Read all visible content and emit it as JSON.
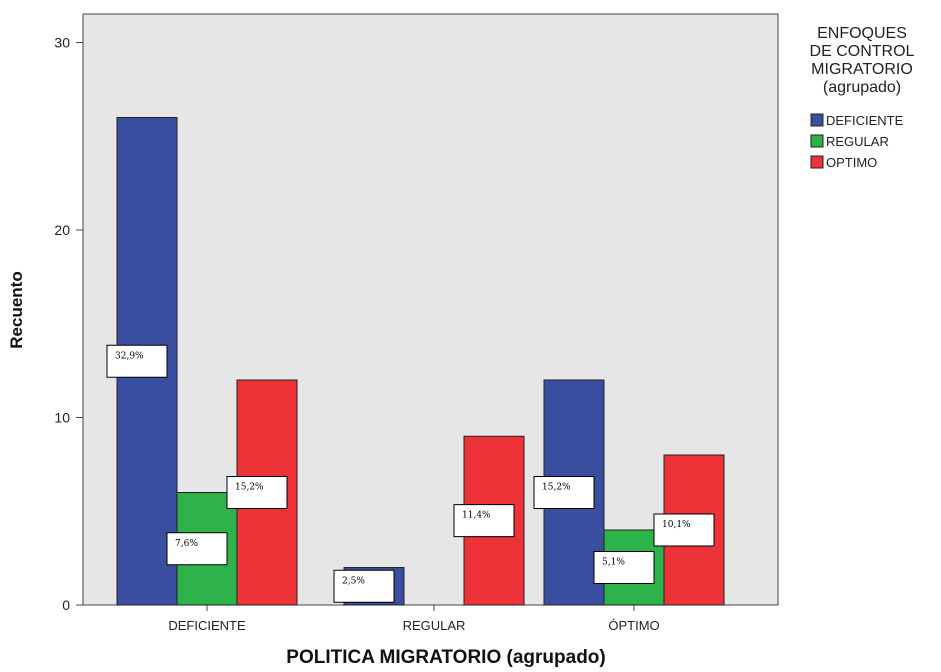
{
  "chart_data": {
    "type": "bar",
    "xlabel": "POLITICA MIGRATORIO (agrupado)",
    "ylabel": "Recuento",
    "ylim": [
      0,
      32
    ],
    "yticks": [
      "0",
      "10",
      "20",
      "30"
    ],
    "categories": [
      "DEFICIENTE",
      "REGULAR",
      "ÓPTIMO"
    ],
    "legend": {
      "title": [
        "ENFOQUES",
        "DE CONTROL",
        "MIGRATORIO",
        "(agrupado)"
      ],
      "placement": "right"
    },
    "series": [
      {
        "name": "DEFICIENTE",
        "color": "#3a4ea0",
        "values": [
          26,
          2,
          12
        ],
        "labels": [
          "32,9%",
          "2,5%",
          "15,2%"
        ]
      },
      {
        "name": "REGULAR",
        "color": "#2db34a",
        "values": [
          6,
          0,
          4
        ],
        "labels": [
          "7,6%",
          "",
          "5,1%"
        ]
      },
      {
        "name": "OPTIMO",
        "color": "#ee3338",
        "values": [
          12,
          9,
          8
        ],
        "labels": [
          "15,2%",
          "11,4%",
          "10,1%"
        ]
      }
    ],
    "background": "#e6e6e6",
    "grid": false
  }
}
